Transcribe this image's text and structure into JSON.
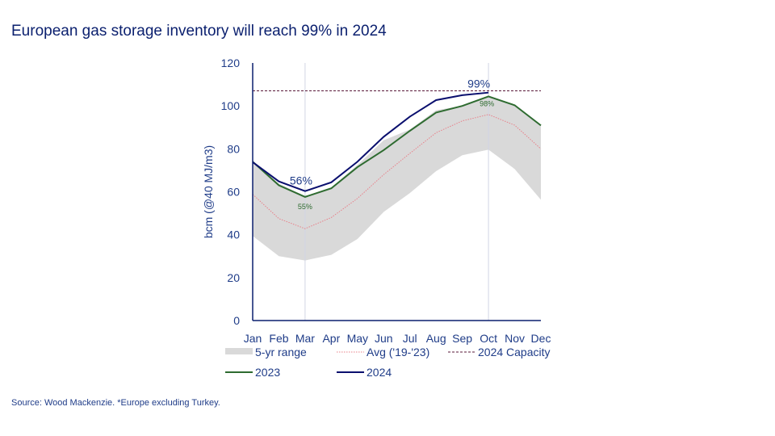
{
  "title": "European gas storage inventory will reach 99% in 2024",
  "source": "Source: Wood Mackenzie. *Europe excluding Turkey.",
  "chart_data": {
    "type": "line",
    "title": "European gas storage inventory will reach 99% in 2024",
    "ylabel": "bcm (@40 MJ/m3)",
    "xlabel": "",
    "ylim": [
      0,
      120
    ],
    "yticks": [
      "0",
      "20",
      "40",
      "60",
      "80",
      "100",
      "120"
    ],
    "categories": [
      "Jan",
      "Feb",
      "Mar",
      "Apr",
      "May",
      "Jun",
      "Jul",
      "Aug",
      "Sep",
      "Oct",
      "Nov",
      "Dec"
    ],
    "grid": "vertical lines at Mar and Oct",
    "legend_placement": "bottom",
    "range": {
      "name": "5-yr range",
      "color": "#d9d9d9",
      "lower": [
        39.4,
        30,
        28,
        30.6,
        38,
        50.6,
        59.4,
        69.6,
        77,
        79.6,
        70.6,
        56.3
      ],
      "upper": [
        74.4,
        63.8,
        58,
        62,
        72.5,
        84,
        89,
        98,
        100,
        104.4,
        100,
        91
      ]
    },
    "series": [
      {
        "name": "Avg ('19-'23)",
        "color": "#e8808a",
        "style": "dotted",
        "values": [
          58.8,
          47.5,
          42.8,
          48,
          56.9,
          68,
          77.9,
          87.5,
          93,
          96,
          91,
          80
        ]
      },
      {
        "name": "2024 Capacity",
        "color": "#5a1a3a",
        "style": "dashed",
        "values": [
          107,
          107,
          107,
          107,
          107,
          107,
          107,
          107,
          107,
          107,
          107,
          107
        ]
      },
      {
        "name": "2023",
        "color": "#2e6b30",
        "style": "solid",
        "values": [
          74,
          63,
          57.6,
          61.6,
          71.5,
          79.4,
          88.4,
          96.9,
          100,
          104.4,
          100.3,
          90.9
        ]
      },
      {
        "name": "2024",
        "color": "#0a0f6e",
        "style": "solid",
        "values": [
          73.8,
          64.8,
          60.3,
          64.4,
          74,
          85.6,
          95,
          102.7,
          105,
          106.2,
          null,
          null
        ]
      }
    ],
    "annotations": [
      {
        "text": "56%",
        "series": "2024",
        "month": "Mar"
      },
      {
        "text": "55%",
        "series": "2023",
        "month": "Mar"
      },
      {
        "text": "99%",
        "series": "2024",
        "month": "Oct"
      },
      {
        "text": "98%",
        "series": "2023",
        "month": "Oct"
      }
    ]
  }
}
